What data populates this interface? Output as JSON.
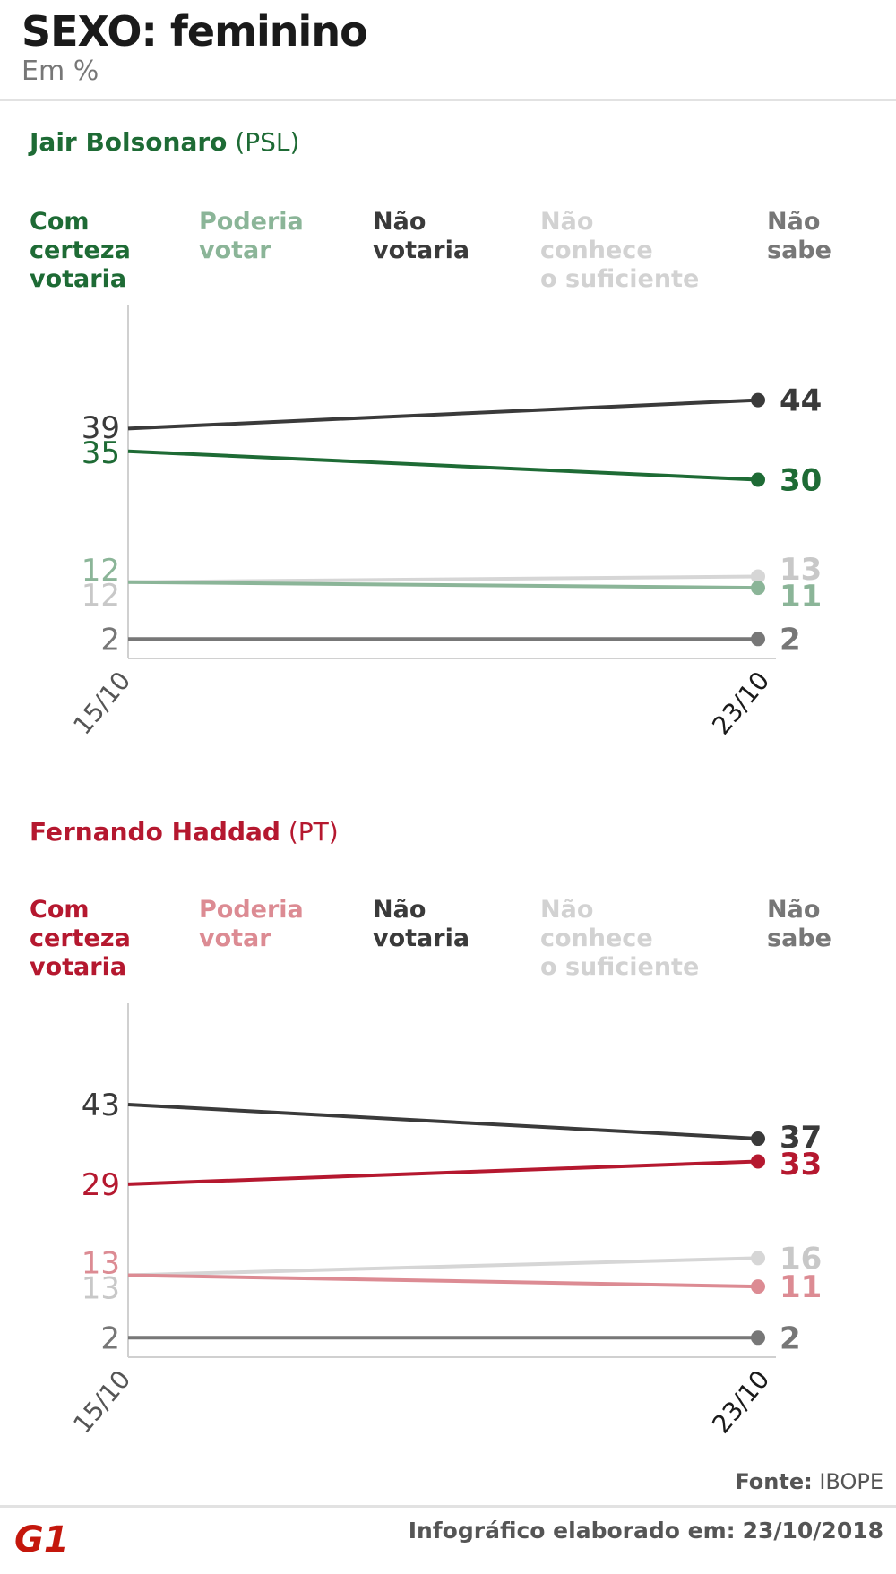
{
  "header": {
    "title": "SEXO: feminino",
    "subtitle": "Em %"
  },
  "legend_labels": [
    [
      "Com",
      "certeza",
      "votaria"
    ],
    [
      "Poderia",
      "votar"
    ],
    [
      "Não",
      "votaria"
    ],
    [
      "Não",
      "conhece",
      "o suficiente"
    ],
    [
      "Não",
      "sabe"
    ]
  ],
  "chart_data": [
    {
      "type": "line",
      "candidate": "Jair Bolsonaro",
      "party": "(PSL)",
      "accent": "#1e6b35",
      "categories": [
        "15/10",
        "23/10"
      ],
      "series": [
        {
          "name": "Com certeza votaria",
          "values": [
            35,
            30
          ],
          "color": "#1e6b35"
        },
        {
          "name": "Poderia votar",
          "values": [
            12,
            11
          ],
          "color": "#8bb598"
        },
        {
          "name": "Não votaria",
          "values": [
            39,
            44
          ],
          "color": "#3a3a3a"
        },
        {
          "name": "Não conhece o suficiente",
          "values": [
            12,
            13
          ],
          "color": "#d6d6d6"
        },
        {
          "name": "Não sabe",
          "values": [
            2,
            2
          ],
          "color": "#777777"
        }
      ]
    },
    {
      "type": "line",
      "candidate": "Fernando Haddad",
      "party": "(PT)",
      "accent": "#b5182f",
      "categories": [
        "15/10",
        "23/10"
      ],
      "series": [
        {
          "name": "Com certeza votaria",
          "values": [
            29,
            33
          ],
          "color": "#b5182f"
        },
        {
          "name": "Poderia votar",
          "values": [
            13,
            11
          ],
          "color": "#dc8b93"
        },
        {
          "name": "Não votaria",
          "values": [
            43,
            37
          ],
          "color": "#3a3a3a"
        },
        {
          "name": "Não conhece o suficiente",
          "values": [
            13,
            16
          ],
          "color": "#d6d6d6"
        },
        {
          "name": "Não sabe",
          "values": [
            2,
            2
          ],
          "color": "#777777"
        }
      ]
    }
  ],
  "footer": {
    "source_label": "Fonte:",
    "source_value": "IBOPE",
    "note_label": "Infográfico elaborado em:",
    "note_value": "23/10/2018",
    "logo_text": "G1",
    "logo_color": "#c4170c"
  }
}
